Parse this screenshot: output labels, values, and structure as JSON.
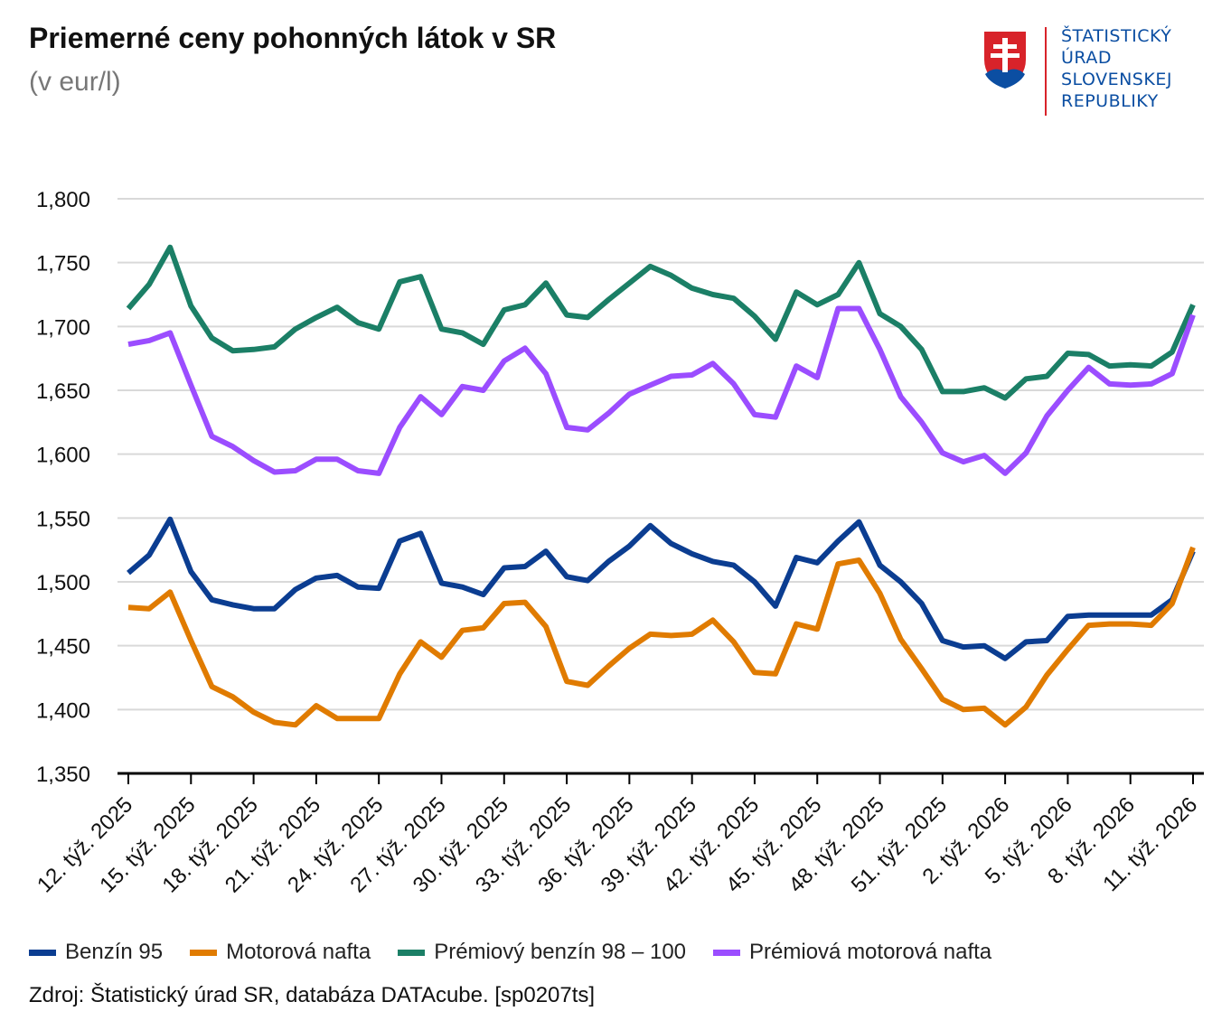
{
  "header": {
    "title": "Priemerné ceny pohonných látok v SR",
    "subtitle": "(v eur/l)"
  },
  "logo": {
    "icon": "slovak-coat-of-arms-icon",
    "lines": [
      "ŠTATISTICKÝ",
      "ÚRAD",
      "SLOVENSKEJ",
      "REPUBLIKY"
    ]
  },
  "source": "Zdroj: Štatistický úrad SR, databáza DATAcube. [sp0207ts]",
  "chart_data": {
    "type": "line",
    "title": "Priemerné ceny pohonných látok v SR",
    "ylabel": "(v eur/l)",
    "ylim": [
      1.35,
      1.8
    ],
    "yticks": [
      1.35,
      1.4,
      1.45,
      1.5,
      1.55,
      1.6,
      1.65,
      1.7,
      1.75,
      1.8
    ],
    "ytick_labels": [
      "1,350",
      "1,400",
      "1,450",
      "1,500",
      "1,550",
      "1,600",
      "1,650",
      "1,700",
      "1,750",
      "1,800"
    ],
    "grid": true,
    "legend_position": "bottom",
    "x": [
      "12. týž. 2025",
      "13. týž. 2025",
      "14. týž. 2025",
      "15. týž. 2025",
      "16. týž. 2025",
      "17. týž. 2025",
      "18. týž. 2025",
      "19. týž. 2025",
      "20. týž. 2025",
      "21. týž. 2025",
      "22. týž. 2025",
      "23. týž. 2025",
      "24. týž. 2025",
      "25. týž. 2025",
      "26. týž. 2025",
      "27. týž. 2025",
      "28. týž. 2025",
      "29. týž. 2025",
      "30. týž. 2025",
      "31. týž. 2025",
      "32. týž. 2025",
      "33. týž. 2025",
      "34. týž. 2025",
      "35. týž. 2025",
      "36. týž. 2025",
      "37. týž. 2025",
      "38. týž. 2025",
      "39. týž. 2025",
      "40. týž. 2025",
      "41. týž. 2025",
      "42. týž. 2025",
      "43. týž. 2025",
      "44. týž. 2025",
      "45. týž. 2025",
      "46. týž. 2025",
      "47. týž. 2025",
      "48. týž. 2025",
      "49. týž. 2025",
      "50. týž. 2025",
      "51. týž. 2025",
      "52. týž. 2025",
      "1. týž. 2026",
      "2. týž. 2026",
      "3. týž. 2026",
      "4. týž. 2026",
      "5. týž. 2026",
      "6. týž. 2026",
      "7. týž. 2026",
      "8. týž. 2026",
      "9. týž. 2026",
      "10. týž. 2026",
      "11. týž. 2026"
    ],
    "xtick_labels": [
      "12. týž. 2025",
      "15. týž. 2025",
      "18. týž. 2025",
      "21. týž. 2025",
      "24. týž. 2025",
      "27. týž. 2025",
      "30. týž. 2025",
      "33. týž. 2025",
      "36. týž. 2025",
      "39. týž. 2025",
      "42. týž. 2025",
      "45. týž. 2025",
      "48. týž. 2025",
      "51. týž. 2025",
      "2. týž. 2026",
      "5. týž. 2026",
      "8. týž. 2026",
      "11. týž. 2026"
    ],
    "series": [
      {
        "name": "Benzín 95",
        "color": "#0b3d91",
        "values": [
          1.507,
          1.521,
          1.549,
          1.508,
          1.486,
          1.482,
          1.479,
          1.479,
          1.494,
          1.503,
          1.505,
          1.496,
          1.495,
          1.532,
          1.538,
          1.499,
          1.496,
          1.49,
          1.511,
          1.512,
          1.524,
          1.504,
          1.501,
          1.516,
          1.528,
          1.544,
          1.53,
          1.522,
          1.516,
          1.513,
          1.5,
          1.481,
          1.519,
          1.515,
          1.532,
          1.547,
          1.513,
          1.5,
          1.483,
          1.454,
          1.449,
          1.45,
          1.44,
          1.453,
          1.454,
          1.473,
          1.474,
          1.474,
          1.474,
          1.474,
          1.486,
          1.524
        ]
      },
      {
        "name": "Motorová nafta",
        "color": "#e07b00",
        "values": [
          1.48,
          1.479,
          1.492,
          1.454,
          1.418,
          1.41,
          1.398,
          1.39,
          1.388,
          1.403,
          1.393,
          1.393,
          1.393,
          1.428,
          1.453,
          1.441,
          1.462,
          1.464,
          1.483,
          1.484,
          1.465,
          1.422,
          1.419,
          1.434,
          1.448,
          1.459,
          1.458,
          1.459,
          1.47,
          1.453,
          1.429,
          1.428,
          1.467,
          1.463,
          1.514,
          1.517,
          1.491,
          1.455,
          1.432,
          1.408,
          1.4,
          1.401,
          1.388,
          1.402,
          1.427,
          1.447,
          1.466,
          1.467,
          1.467,
          1.466,
          1.483,
          1.527
        ]
      },
      {
        "name": "Prémiový benzín 98 – 100",
        "color": "#1b7f66",
        "values": [
          1.714,
          1.733,
          1.762,
          1.716,
          1.691,
          1.681,
          1.682,
          1.684,
          1.698,
          1.707,
          1.715,
          1.703,
          1.698,
          1.735,
          1.739,
          1.698,
          1.695,
          1.686,
          1.713,
          1.717,
          1.734,
          1.709,
          1.707,
          1.721,
          1.734,
          1.747,
          1.74,
          1.73,
          1.725,
          1.722,
          1.708,
          1.69,
          1.727,
          1.717,
          1.725,
          1.75,
          1.71,
          1.7,
          1.682,
          1.649,
          1.649,
          1.652,
          1.644,
          1.659,
          1.661,
          1.679,
          1.678,
          1.669,
          1.67,
          1.669,
          1.68,
          1.717
        ]
      },
      {
        "name": "Prémiová motorová nafta",
        "color": "#9b4dff",
        "values": [
          1.686,
          1.689,
          1.695,
          1.654,
          1.614,
          1.606,
          1.595,
          1.586,
          1.587,
          1.596,
          1.596,
          1.587,
          1.585,
          1.621,
          1.645,
          1.631,
          1.653,
          1.65,
          1.673,
          1.683,
          1.663,
          1.621,
          1.619,
          1.632,
          1.647,
          1.654,
          1.661,
          1.662,
          1.671,
          1.655,
          1.631,
          1.629,
          1.669,
          1.66,
          1.714,
          1.714,
          1.682,
          1.645,
          1.625,
          1.601,
          1.594,
          1.599,
          1.585,
          1.601,
          1.63,
          1.65,
          1.668,
          1.655,
          1.654,
          1.655,
          1.663,
          1.709
        ]
      }
    ]
  }
}
